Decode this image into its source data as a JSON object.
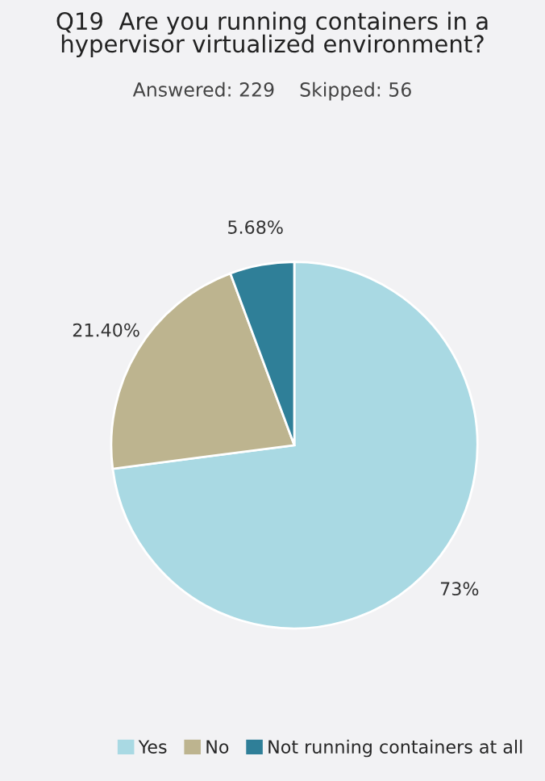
{
  "chart_data": {
    "type": "pie",
    "title": "Q19  Are you running containers in a\nhypervisor virtualized environment?",
    "subtitle": "Answered: 229    Skipped: 56",
    "categories": [
      "Yes",
      "No",
      "Not running containers at all"
    ],
    "values": [
      73,
      21.4,
      5.68
    ],
    "value_labels": [
      "73%",
      "21.40%",
      "5.68%"
    ],
    "colors": [
      "#a9d9e3",
      "#bdb48f",
      "#2f7f98"
    ],
    "legend": "bottom"
  }
}
